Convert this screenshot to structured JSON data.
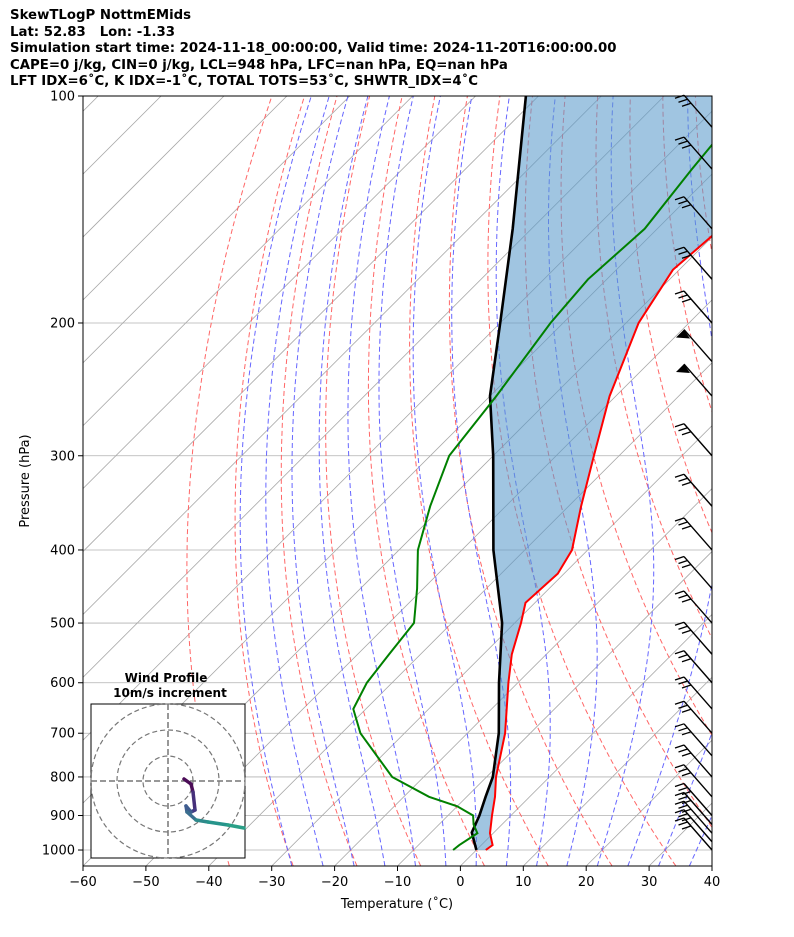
{
  "header": {
    "line1": "SkewTLogP NottmEMids",
    "line2": "Lat: 52.83   Lon: -1.33",
    "line3": "Simulation start time: 2024-11-18_00:00:00, Valid time: 2024-11-20T16:00:00.00",
    "line4": "CAPE=0 j/kg, CIN=0 j/kg, LCL=948 hPa, LFC=nan hPa, EQ=nan hPa",
    "line5": "LFT IDX=6˚C, K IDX=-1˚C, TOTAL TOTS=53˚C, SHWTR_IDX=4˚C"
  },
  "colors": {
    "temperature": "#ff0000",
    "dewpoint": "#008000",
    "parcel": "#000000",
    "cape_fill": "#5b9bcb",
    "dry_adiabat": "#ff6666",
    "moist_adiabat": "#6666ff",
    "isotherm": "#888888"
  },
  "chart_data": {
    "type": "skewt",
    "xlabel": "Temperature (˚C)",
    "ylabel": "Pressure (hPa)",
    "xlim": [
      -60,
      40
    ],
    "ylim": [
      1050,
      100
    ],
    "xticks": [
      "−60",
      "−50",
      "−40",
      "−30",
      "−20",
      "−10",
      "0",
      "10",
      "20",
      "30",
      "40"
    ],
    "yticks": [
      "100",
      "200",
      "300",
      "400",
      "500",
      "600",
      "700",
      "800",
      "900",
      "1000"
    ],
    "temperature_profile": [
      [
        1000,
        1.5
      ],
      [
        985,
        1.8
      ],
      [
        950,
        -0.5
      ],
      [
        900,
        -3
      ],
      [
        850,
        -5.5
      ],
      [
        800,
        -8.5
      ],
      [
        700,
        -14
      ],
      [
        600,
        -21.5
      ],
      [
        550,
        -25.5
      ],
      [
        500,
        -29
      ],
      [
        470,
        -31.5
      ],
      [
        430,
        -31
      ],
      [
        400,
        -32.5
      ],
      [
        350,
        -38
      ],
      [
        300,
        -44
      ],
      [
        250,
        -51
      ],
      [
        200,
        -58
      ],
      [
        170,
        -61
      ],
      [
        150,
        -60
      ],
      [
        130,
        -59
      ],
      [
        100,
        -63
      ]
    ],
    "dewpoint_profile": [
      [
        1000,
        -3.7
      ],
      [
        985,
        -3.5
      ],
      [
        950,
        -2.5
      ],
      [
        925,
        -4.5
      ],
      [
        900,
        -6
      ],
      [
        875,
        -10
      ],
      [
        850,
        -16
      ],
      [
        800,
        -25
      ],
      [
        700,
        -37
      ],
      [
        650,
        -42
      ],
      [
        600,
        -44
      ],
      [
        550,
        -45
      ],
      [
        500,
        -46
      ],
      [
        450,
        -51
      ],
      [
        400,
        -57
      ],
      [
        350,
        -62
      ],
      [
        300,
        -67
      ],
      [
        250,
        -69
      ],
      [
        200,
        -72
      ],
      [
        175,
        -73
      ],
      [
        150,
        -72
      ],
      [
        125,
        -74
      ],
      [
        100,
        -76
      ]
    ],
    "parcel_profile": [
      [
        1000,
        0
      ],
      [
        948,
        -3.5
      ],
      [
        900,
        -5
      ],
      [
        850,
        -7
      ],
      [
        800,
        -9
      ],
      [
        700,
        -15
      ],
      [
        600,
        -23
      ],
      [
        500,
        -32
      ],
      [
        400,
        -45
      ],
      [
        300,
        -60
      ],
      [
        250,
        -70
      ],
      [
        200,
        -80
      ],
      [
        150,
        -93
      ],
      [
        100,
        -112
      ]
    ],
    "wind_barbs": [
      [
        1000,
        "barb"
      ],
      [
        975,
        "barb"
      ],
      [
        950,
        "barb"
      ],
      [
        925,
        "barb"
      ],
      [
        900,
        "barb"
      ],
      [
        850,
        "barb"
      ],
      [
        800,
        "barb"
      ],
      [
        750,
        "barb"
      ],
      [
        700,
        "barb"
      ],
      [
        650,
        "barb"
      ],
      [
        600,
        "barb"
      ],
      [
        550,
        "barb"
      ],
      [
        500,
        "barb"
      ],
      [
        450,
        "barb"
      ],
      [
        400,
        "barb"
      ],
      [
        350,
        "barb"
      ],
      [
        300,
        "barb"
      ],
      [
        250,
        "flag"
      ],
      [
        225,
        "flag"
      ],
      [
        200,
        "barb"
      ],
      [
        175,
        "barb"
      ],
      [
        150,
        "barb"
      ],
      [
        125,
        "barb"
      ],
      [
        110,
        "barb"
      ]
    ],
    "inset": {
      "title": "Wind Profile",
      "subtitle": "10m/s increment",
      "rings": 3
    }
  }
}
